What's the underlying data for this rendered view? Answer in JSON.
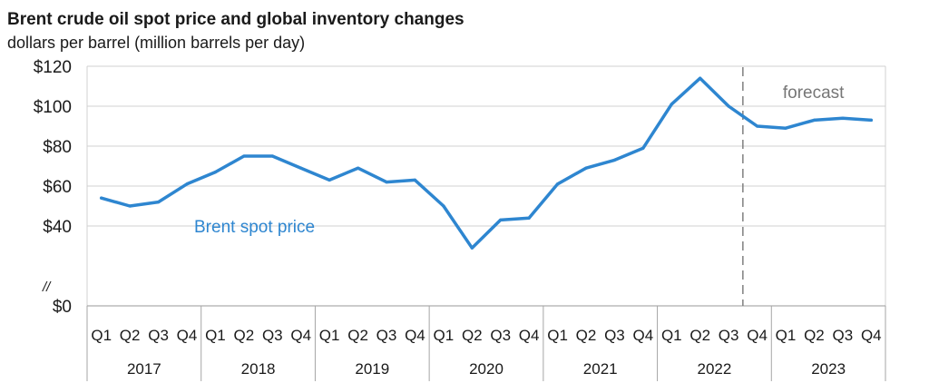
{
  "chart_data": {
    "type": "line",
    "title": "Brent crude oil spot price and global inventory changes",
    "subtitle": "dollars per barrel (million barrels per day)",
    "ylim": [
      0,
      120
    ],
    "yticks": [
      {
        "value": 0,
        "label": "$0"
      },
      {
        "value": 40,
        "label": "$40"
      },
      {
        "value": 60,
        "label": "$60"
      },
      {
        "value": 80,
        "label": "$80"
      },
      {
        "value": 100,
        "label": "$100"
      },
      {
        "value": 120,
        "label": "$120"
      }
    ],
    "axis_break_label": "//",
    "grid": true,
    "quarters": [
      "Q1",
      "Q2",
      "Q3",
      "Q4",
      "Q1",
      "Q2",
      "Q3",
      "Q4",
      "Q1",
      "Q2",
      "Q3",
      "Q4",
      "Q1",
      "Q2",
      "Q3",
      "Q4",
      "Q1",
      "Q2",
      "Q3",
      "Q4",
      "Q1",
      "Q2",
      "Q3",
      "Q4",
      "Q1",
      "Q2",
      "Q3",
      "Q4"
    ],
    "years": [
      "2017",
      "2018",
      "2019",
      "2020",
      "2021",
      "2022",
      "2023"
    ],
    "series": [
      {
        "name": "Brent spot price",
        "color": "#2e86d0",
        "values": [
          54,
          50,
          52,
          61,
          67,
          75,
          75,
          69,
          63,
          69,
          62,
          63,
          50,
          29,
          43,
          44,
          61,
          69,
          73,
          79,
          101,
          114,
          100,
          90,
          89,
          93,
          94,
          93
        ]
      }
    ],
    "forecast": {
      "start_after_index": 22,
      "label": "forecast",
      "color": "#7f7f7f"
    }
  }
}
